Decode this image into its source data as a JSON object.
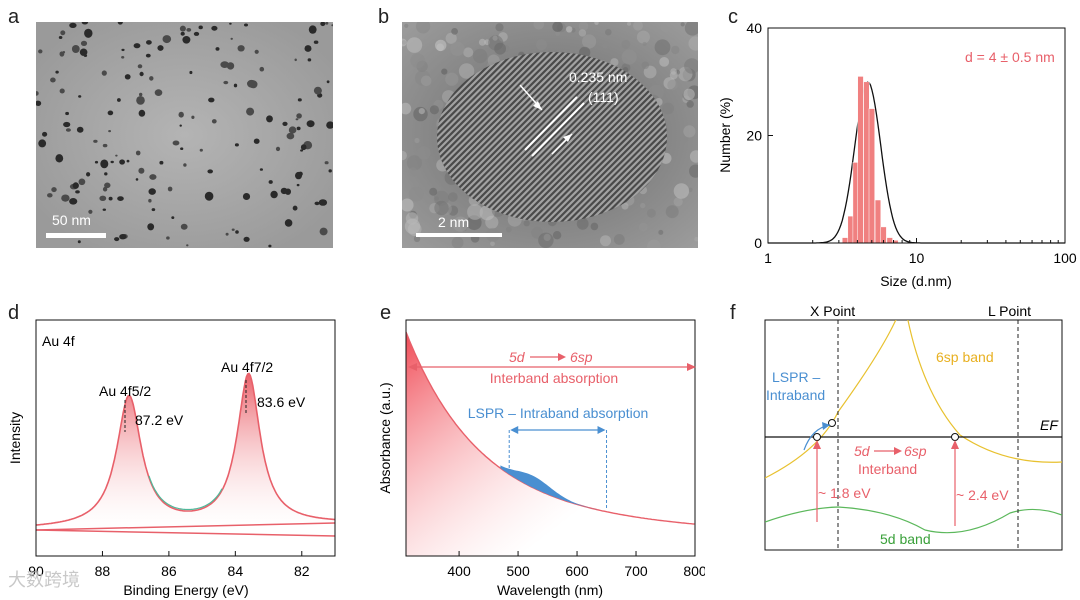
{
  "panels": {
    "a": {
      "letter": "a",
      "scale_bar": "50 nm"
    },
    "b": {
      "letter": "b",
      "scale_bar": "2 nm",
      "lattice_spacing": "0.235 nm",
      "lattice_plane": "(111)"
    },
    "c": {
      "letter": "c",
      "annotation": "d = 4 ± 0.5 nm",
      "colors": {
        "bars": "#f08080",
        "fit": "#111111",
        "annotation": "#e8606a"
      }
    },
    "d": {
      "letter": "d",
      "label_au4f": "Au 4f",
      "peak1_label": "Au 4f5/2",
      "peak1_energy": "87.2 eV",
      "peak2_label": "Au 4f7/2",
      "peak2_energy": "83.6 eV"
    },
    "e": {
      "letter": "e",
      "interband_from": "5d",
      "interband_to": "6sp",
      "interband_label": "Interband absorption",
      "lspr_label": "LSPR – Intraband absorption"
    },
    "f": {
      "letter": "f",
      "x_point": "X Point",
      "l_point": "L Point",
      "band_6sp": "6sp band",
      "band_5d": "5d band",
      "fermi": "EF",
      "lspr_line1": "LSPR –",
      "lspr_line2": "Intraband",
      "interband_from": "5d",
      "interband_to": "6sp",
      "interband_label": "Interband",
      "energy1": "~ 1.8 eV",
      "energy2": "~ 2.4 eV"
    }
  },
  "watermark": "大数跨境",
  "chart_data": [
    {
      "id": "c",
      "type": "bar",
      "xscale": "log",
      "xlabel": "Size (d.nm)",
      "ylabel": "Number (%)",
      "xlim": [
        1,
        100
      ],
      "ylim": [
        0,
        40
      ],
      "xticks": [
        "1",
        "10",
        "100"
      ],
      "yticks": [
        "0",
        "20",
        "40"
      ],
      "x": [
        3.3,
        3.6,
        3.9,
        4.2,
        4.6,
        5.0,
        5.5,
        6.0,
        6.6,
        7.2
      ],
      "values": [
        1,
        5,
        15,
        31,
        30,
        25,
        8,
        3,
        1,
        0.5
      ],
      "fit": {
        "type": "lognormal",
        "center": 4.7,
        "peak": 30
      }
    },
    {
      "id": "d",
      "type": "line",
      "xlabel": "Binding Energy (eV)",
      "ylabel": "Intensity",
      "xlim": [
        90,
        81
      ],
      "xticks": [
        "90",
        "88",
        "86",
        "84",
        "82"
      ],
      "series": [
        {
          "name": "Au 4f",
          "peaks_eV": [
            87.2,
            83.6
          ]
        }
      ]
    },
    {
      "id": "e",
      "type": "area",
      "xlabel": "Wavelength (nm)",
      "ylabel": "Absorbance (a.u.)",
      "xlim": [
        310,
        800
      ],
      "xticks": [
        "400",
        "500",
        "600",
        "700",
        "800"
      ],
      "lspr_range_nm": [
        485,
        650
      ],
      "lspr_peak_nm": 525
    }
  ]
}
